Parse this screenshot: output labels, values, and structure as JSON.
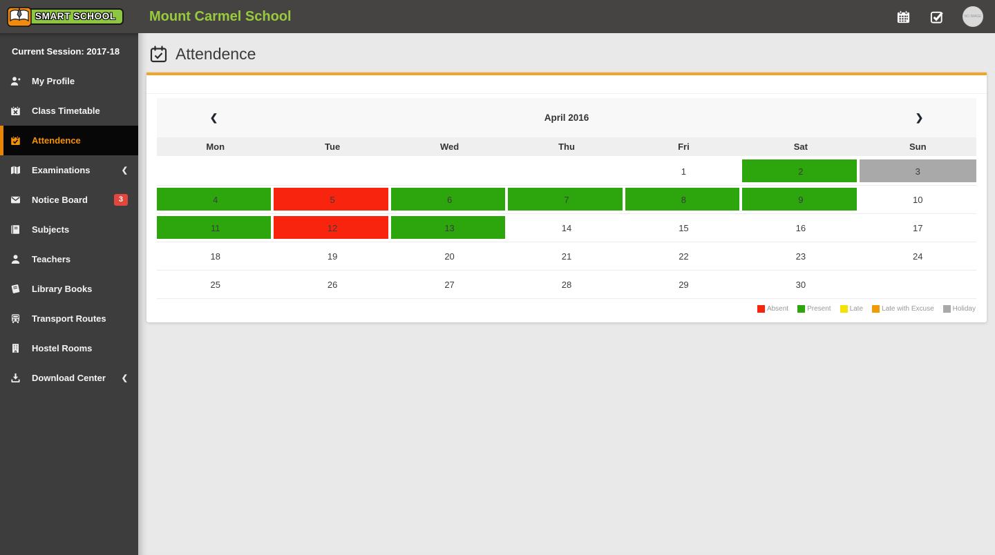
{
  "header": {
    "brand": "SMART SCHOOL",
    "school_name": "Mount Carmel School",
    "icons": [
      "calendar-icon",
      "check-square-icon"
    ],
    "avatar_text": "NO IMAGE"
  },
  "sidebar": {
    "session_label": "Current Session: 2017-18",
    "items": [
      {
        "label": "My Profile",
        "icon": "user-plus-icon",
        "active": false
      },
      {
        "label": "Class Timetable",
        "icon": "calendar-x-icon",
        "active": false
      },
      {
        "label": "Attendence",
        "icon": "calendar-check-icon",
        "active": true
      },
      {
        "label": "Examinations",
        "icon": "map-icon",
        "active": false,
        "chevron": "❮"
      },
      {
        "label": "Notice Board",
        "icon": "envelope-icon",
        "active": false,
        "badge": "3"
      },
      {
        "label": "Subjects",
        "icon": "book-icon",
        "active": false
      },
      {
        "label": "Teachers",
        "icon": "user-icon",
        "active": false
      },
      {
        "label": "Library Books",
        "icon": "library-book-icon",
        "active": false
      },
      {
        "label": "Transport Routes",
        "icon": "bus-icon",
        "active": false
      },
      {
        "label": "Hostel Rooms",
        "icon": "building-icon",
        "active": false
      },
      {
        "label": "Download Center",
        "icon": "download-icon",
        "active": false,
        "chevron": "❮"
      }
    ]
  },
  "main": {
    "page_title": "Attendence",
    "calendar": {
      "month_label": "April 2016",
      "prev_label": "❮",
      "next_label": "❯",
      "day_headers": [
        "Mon",
        "Tue",
        "Wed",
        "Thu",
        "Fri",
        "Sat",
        "Sun"
      ],
      "weeks": [
        [
          {
            "day": ""
          },
          {
            "day": ""
          },
          {
            "day": ""
          },
          {
            "day": ""
          },
          {
            "day": "1"
          },
          {
            "day": "2",
            "status": "present"
          },
          {
            "day": "3",
            "status": "holiday"
          }
        ],
        [
          {
            "day": "4",
            "status": "present"
          },
          {
            "day": "5",
            "status": "absent"
          },
          {
            "day": "6",
            "status": "present"
          },
          {
            "day": "7",
            "status": "present"
          },
          {
            "day": "8",
            "status": "present"
          },
          {
            "day": "9",
            "status": "present"
          },
          {
            "day": "10"
          }
        ],
        [
          {
            "day": "11",
            "status": "present"
          },
          {
            "day": "12",
            "status": "absent"
          },
          {
            "day": "13",
            "status": "present"
          },
          {
            "day": "14"
          },
          {
            "day": "15"
          },
          {
            "day": "16"
          },
          {
            "day": "17"
          }
        ],
        [
          {
            "day": "18"
          },
          {
            "day": "19"
          },
          {
            "day": "20"
          },
          {
            "day": "21"
          },
          {
            "day": "22"
          },
          {
            "day": "23"
          },
          {
            "day": "24"
          }
        ],
        [
          {
            "day": "25"
          },
          {
            "day": "26"
          },
          {
            "day": "27"
          },
          {
            "day": "28"
          },
          {
            "day": "29"
          },
          {
            "day": "30"
          },
          {
            "day": ""
          }
        ]
      ],
      "status_colors": {
        "present": "#2ca60c",
        "absent": "#f8240e",
        "late": "#f4e300",
        "late_excuse": "#f09a05",
        "holiday": "#a9a9a9"
      },
      "legend": [
        {
          "label": "Absent",
          "color": "#f8240e"
        },
        {
          "label": "Present",
          "color": "#2ca60c"
        },
        {
          "label": "Late",
          "color": "#f4e300"
        },
        {
          "label": "Late with Excuse",
          "color": "#f09a05"
        },
        {
          "label": "Holiday",
          "color": "#a9a9a9"
        }
      ]
    }
  },
  "colors": {
    "header_bg": "#464442",
    "sidebar_bg": "#3e3d3d",
    "brand_green": "#8dc63f",
    "school_name_green": "#97ca3d",
    "active_item_orange": "#f39106",
    "card_top_orange": "#f3a32a",
    "badge_red": "#e2473d"
  }
}
